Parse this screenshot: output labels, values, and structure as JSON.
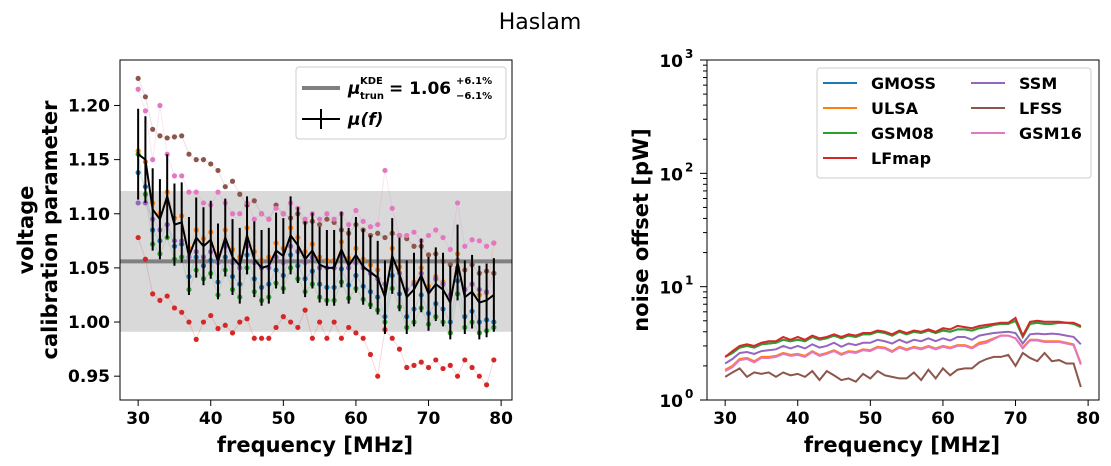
{
  "figure": {
    "suptitle": "Haslam"
  },
  "colors": {
    "GMOSS": "#1f77b4",
    "ULSA": "#ff7f0e",
    "GSM08": "#2ca02c",
    "LFmap": "#d62728",
    "SSM": "#9467bd",
    "LFSS": "#8c564b",
    "GSM16": "#e377c2",
    "mean_line": "#000000",
    "kde_line": "#808080",
    "band": "#d9d9d9"
  },
  "chart_data": [
    {
      "type": "scatter",
      "xlabel": "frequency [MHz]",
      "ylabel_lines": [
        "voltage",
        "calibration parameter"
      ],
      "xlim": [
        27.5,
        81.5
      ],
      "ylim": [
        0.928,
        1.242
      ],
      "xticks": [
        30,
        40,
        50,
        60,
        70,
        80
      ],
      "yticks": [
        0.95,
        1.0,
        1.05,
        1.1,
        1.15,
        1.2
      ],
      "ytick_labels": [
        "0.95",
        "1.00",
        "1.05",
        "1.10",
        "1.15",
        "1.20"
      ],
      "grid": false,
      "legend_position": "top-right",
      "legend": {
        "kde_label_main": "μ",
        "kde_label_sup": "KDE",
        "kde_label_sub": "trun",
        "kde_value": "= 1.06",
        "kde_plus": "+6.1%",
        "kde_minus": "−6.1%",
        "mean_label": "μ(f)"
      },
      "band": {
        "center": 1.056,
        "lower": 0.991,
        "upper": 1.121
      },
      "x": [
        30,
        31,
        32,
        33,
        34,
        35,
        36,
        37,
        38,
        39,
        40,
        41,
        42,
        43,
        44,
        45,
        46,
        47,
        48,
        49,
        50,
        51,
        52,
        53,
        54,
        55,
        56,
        57,
        58,
        59,
        60,
        61,
        62,
        63,
        64,
        65,
        66,
        67,
        68,
        69,
        70,
        71,
        72,
        73,
        74,
        75,
        76,
        77,
        78,
        79
      ],
      "mean": [
        1.155,
        1.15,
        1.104,
        1.095,
        1.116,
        1.09,
        1.092,
        1.061,
        1.078,
        1.07,
        1.076,
        1.056,
        1.078,
        1.06,
        1.052,
        1.08,
        1.058,
        1.05,
        1.052,
        1.066,
        1.061,
        1.08,
        1.071,
        1.058,
        1.066,
        1.053,
        1.05,
        1.05,
        1.067,
        1.052,
        1.062,
        1.051,
        1.046,
        1.041,
        1.023,
        1.061,
        1.044,
        1.023,
        1.03,
        1.043,
        1.026,
        1.035,
        1.03,
        1.018,
        1.055,
        1.023,
        1.028,
        1.018,
        1.02,
        1.025
      ],
      "mean_err": [
        0.042,
        0.04,
        0.038,
        0.037,
        0.039,
        0.038,
        0.037,
        0.036,
        0.037,
        0.036,
        0.036,
        0.035,
        0.036,
        0.035,
        0.035,
        0.036,
        0.035,
        0.035,
        0.035,
        0.035,
        0.035,
        0.036,
        0.035,
        0.035,
        0.035,
        0.035,
        0.035,
        0.035,
        0.035,
        0.035,
        0.035,
        0.035,
        0.034,
        0.034,
        0.034,
        0.035,
        0.034,
        0.034,
        0.034,
        0.034,
        0.034,
        0.034,
        0.034,
        0.034,
        0.035,
        0.034,
        0.034,
        0.034,
        0.034,
        0.034
      ],
      "series": [
        {
          "name": "GMOSS",
          "values": [
            1.138,
            1.125,
            1.085,
            1.075,
            1.09,
            1.07,
            1.072,
            1.042,
            1.06,
            1.052,
            1.057,
            1.037,
            1.06,
            1.042,
            1.035,
            1.062,
            1.04,
            1.032,
            1.035,
            1.048,
            1.043,
            1.062,
            1.052,
            1.04,
            1.047,
            1.035,
            1.032,
            1.032,
            1.049,
            1.034,
            1.043,
            1.033,
            1.028,
            1.023,
            1.005,
            1.043,
            1.026,
            1.005,
            1.012,
            1.025,
            1.008,
            1.017,
            1.012,
            1.0,
            1.038,
            1.005,
            1.01,
            1.0,
            1.002,
            1.0
          ]
        },
        {
          "name": "ULSA",
          "values": [
            1.158,
            1.148,
            1.11,
            1.1,
            1.12,
            1.096,
            1.098,
            1.068,
            1.085,
            1.077,
            1.083,
            1.063,
            1.085,
            1.067,
            1.06,
            1.087,
            1.065,
            1.057,
            1.06,
            1.073,
            1.068,
            1.087,
            1.078,
            1.065,
            1.072,
            1.06,
            1.057,
            1.057,
            1.074,
            1.059,
            1.068,
            1.058,
            1.053,
            1.048,
            1.03,
            1.068,
            1.051,
            1.03,
            1.037,
            1.05,
            1.033,
            1.042,
            1.037,
            1.025,
            1.063,
            1.03,
            1.035,
            1.025,
            1.027,
            1.073
          ]
        },
        {
          "name": "GSM08",
          "values": [
            1.155,
            1.118,
            1.072,
            1.063,
            1.078,
            1.058,
            1.06,
            1.03,
            1.048,
            1.04,
            1.045,
            1.025,
            1.048,
            1.03,
            1.023,
            1.05,
            1.028,
            1.02,
            1.023,
            1.036,
            1.031,
            1.05,
            1.04,
            1.028,
            1.035,
            1.023,
            1.02,
            1.02,
            1.037,
            1.022,
            1.031,
            1.021,
            1.016,
            1.011,
            1.0,
            1.031,
            1.014,
            0.995,
            1.0,
            1.013,
            0.998,
            1.005,
            1.0,
            0.99,
            1.026,
            0.995,
            1.0,
            0.99,
            0.992,
            0.995
          ]
        },
        {
          "name": "LFmap",
          "values": [
            1.078,
            1.058,
            1.026,
            1.02,
            1.024,
            1.013,
            1.009,
            1.0,
            0.984,
            1.0,
            1.006,
            0.994,
            0.997,
            0.99,
            1.0,
            1.003,
            0.985,
            0.985,
            0.985,
            0.995,
            1.005,
            1.0,
            0.995,
            1.011,
            0.985,
            1.0,
            0.985,
            1.0,
            0.985,
            0.995,
            0.99,
            0.985,
            0.97,
            0.95,
            0.993,
            0.985,
            0.975,
            0.958,
            0.96,
            0.963,
            0.958,
            0.965,
            0.957,
            0.96,
            0.95,
            0.965,
            0.958,
            0.95,
            0.942,
            0.965
          ]
        },
        {
          "name": "SSM",
          "values": [
            1.11,
            1.11,
            1.095,
            1.085,
            1.09,
            1.075,
            1.075,
            1.06,
            1.065,
            1.06,
            1.065,
            1.055,
            1.07,
            1.055,
            1.05,
            1.07,
            1.055,
            1.05,
            1.05,
            1.06,
            1.055,
            1.07,
            1.065,
            1.055,
            1.06,
            1.05,
            1.05,
            1.05,
            1.06,
            1.05,
            1.055,
            1.05,
            1.045,
            1.04,
            1.035,
            1.055,
            1.045,
            1.03,
            1.035,
            1.045,
            1.03,
            1.04,
            1.035,
            1.025,
            1.05,
            1.03,
            1.035,
            1.03,
            1.028,
            1.045
          ]
        },
        {
          "name": "LFSS",
          "values": [
            1.225,
            1.208,
            1.178,
            1.172,
            1.17,
            1.171,
            1.172,
            1.155,
            1.15,
            1.15,
            1.146,
            1.14,
            1.125,
            1.13,
            1.118,
            1.108,
            1.112,
            1.1,
            1.095,
            1.108,
            1.1,
            1.096,
            1.1,
            1.092,
            1.093,
            1.09,
            1.095,
            1.092,
            1.085,
            1.082,
            1.09,
            1.085,
            1.08,
            1.082,
            1.078,
            1.082,
            1.08,
            1.077,
            1.07,
            1.07,
            1.062,
            1.063,
            1.056,
            1.053,
            1.057,
            1.048,
            1.053,
            1.045,
            1.047,
            1.045
          ]
        },
        {
          "name": "GSM16",
          "values": [
            1.215,
            1.195,
            1.15,
            1.2,
            1.155,
            1.135,
            1.135,
            1.12,
            1.12,
            1.11,
            1.108,
            1.12,
            1.11,
            1.1,
            1.1,
            1.11,
            1.095,
            1.1,
            1.095,
            1.105,
            1.1,
            1.11,
            1.105,
            1.095,
            1.1,
            1.095,
            1.1,
            1.095,
            1.1,
            1.09,
            1.103,
            1.093,
            1.088,
            1.09,
            1.14,
            1.105,
            1.08,
            1.08,
            1.083,
            1.075,
            1.08,
            1.085,
            1.078,
            1.067,
            1.11,
            1.07,
            1.076,
            1.075,
            1.07,
            1.073
          ]
        }
      ]
    },
    {
      "type": "line",
      "xlabel": "frequency [MHz]",
      "ylabel": "noise offset [pW]",
      "xlim": [
        27.5,
        81.5
      ],
      "ylim": [
        1,
        1000
      ],
      "yscale": "log",
      "xticks": [
        30,
        40,
        50,
        60,
        70,
        80
      ],
      "ytick_base": "10",
      "ytick_exponents": [
        "0",
        "1",
        "2",
        "3"
      ],
      "grid": false,
      "legend_position": "top-right",
      "legend_columns": 2,
      "x": [
        30,
        31,
        32,
        33,
        34,
        35,
        36,
        37,
        38,
        39,
        40,
        41,
        42,
        43,
        44,
        45,
        46,
        47,
        48,
        49,
        50,
        51,
        52,
        53,
        54,
        55,
        56,
        57,
        58,
        59,
        60,
        61,
        62,
        63,
        64,
        65,
        66,
        67,
        68,
        69,
        70,
        71,
        72,
        73,
        74,
        75,
        76,
        77,
        78,
        79
      ],
      "series": [
        {
          "name": "GMOSS",
          "values": [
            2.4,
            2.6,
            2.9,
            3.0,
            2.9,
            3.1,
            3.15,
            3.2,
            3.4,
            3.3,
            3.4,
            3.3,
            3.6,
            3.4,
            3.5,
            3.7,
            3.5,
            3.7,
            3.6,
            3.8,
            3.8,
            4.0,
            3.9,
            3.7,
            4.0,
            3.8,
            4.0,
            3.9,
            4.1,
            3.9,
            4.1,
            4.0,
            4.2,
            4.2,
            4.1,
            4.3,
            4.4,
            4.6,
            4.7,
            4.7,
            5.0,
            3.6,
            4.7,
            4.8,
            4.7,
            4.7,
            4.8,
            4.8,
            4.7,
            4.4
          ]
        },
        {
          "name": "ULSA",
          "values": [
            1.85,
            2.0,
            2.3,
            2.35,
            2.2,
            2.4,
            2.4,
            2.45,
            2.6,
            2.5,
            2.55,
            2.45,
            2.7,
            2.5,
            2.6,
            2.75,
            2.55,
            2.7,
            2.65,
            2.8,
            2.75,
            2.95,
            2.9,
            2.7,
            2.95,
            2.8,
            2.95,
            2.85,
            3.0,
            2.85,
            3.0,
            2.9,
            3.05,
            3.05,
            2.9,
            3.2,
            3.3,
            3.5,
            3.7,
            3.7,
            3.5,
            2.9,
            3.4,
            3.4,
            3.3,
            3.3,
            3.3,
            3.2,
            3.1,
            2.1
          ]
        },
        {
          "name": "GSM08",
          "values": [
            2.4,
            2.6,
            2.9,
            3.0,
            2.9,
            3.1,
            3.15,
            3.2,
            3.4,
            3.3,
            3.4,
            3.3,
            3.6,
            3.4,
            3.5,
            3.7,
            3.5,
            3.7,
            3.6,
            3.8,
            3.8,
            4.0,
            3.9,
            3.7,
            4.0,
            3.8,
            4.0,
            3.9,
            4.1,
            3.9,
            4.1,
            4.0,
            4.2,
            4.2,
            4.1,
            4.3,
            4.4,
            4.6,
            4.7,
            4.7,
            5.0,
            3.6,
            4.7,
            4.8,
            4.7,
            4.7,
            4.8,
            4.8,
            4.7,
            4.4
          ]
        },
        {
          "name": "LFmap",
          "values": [
            2.4,
            2.7,
            3.0,
            3.1,
            3.0,
            3.2,
            3.3,
            3.3,
            3.6,
            3.4,
            3.6,
            3.4,
            3.7,
            3.5,
            3.6,
            3.8,
            3.6,
            3.8,
            3.7,
            3.9,
            3.9,
            4.1,
            4.0,
            3.8,
            4.1,
            3.9,
            4.1,
            4.0,
            4.2,
            4.0,
            4.3,
            4.2,
            4.5,
            4.4,
            4.3,
            4.5,
            4.6,
            4.7,
            4.8,
            4.8,
            5.3,
            3.7,
            4.9,
            5.0,
            4.9,
            4.9,
            4.9,
            4.8,
            4.8,
            4.5
          ]
        },
        {
          "name": "SSM",
          "values": [
            2.1,
            2.3,
            2.6,
            2.65,
            2.55,
            2.7,
            2.75,
            2.8,
            3.0,
            2.85,
            3.0,
            2.85,
            3.1,
            2.9,
            3.0,
            3.2,
            2.95,
            3.15,
            3.05,
            3.2,
            3.2,
            3.4,
            3.3,
            3.15,
            3.4,
            3.2,
            3.4,
            3.3,
            3.5,
            3.3,
            3.5,
            3.35,
            3.6,
            3.6,
            3.4,
            3.7,
            3.8,
            3.9,
            3.95,
            4.0,
            3.9,
            3.15,
            3.8,
            3.85,
            3.8,
            3.85,
            3.8,
            3.7,
            3.6,
            3.1
          ]
        },
        {
          "name": "LFSS",
          "values": [
            1.6,
            1.75,
            1.9,
            1.6,
            1.75,
            1.7,
            1.75,
            1.6,
            1.75,
            1.65,
            1.7,
            1.6,
            1.8,
            1.5,
            1.8,
            1.65,
            1.5,
            1.55,
            1.45,
            1.7,
            1.55,
            1.8,
            1.65,
            1.6,
            1.55,
            1.55,
            1.75,
            1.5,
            1.85,
            1.55,
            1.9,
            1.65,
            1.85,
            1.9,
            1.9,
            2.15,
            2.3,
            2.4,
            2.4,
            2.5,
            2.0,
            2.6,
            2.35,
            2.2,
            2.6,
            2.2,
            2.25,
            2.1,
            2.1,
            1.3
          ]
        },
        {
          "name": "GSM16",
          "values": [
            1.8,
            1.95,
            2.25,
            2.3,
            2.15,
            2.35,
            2.35,
            2.4,
            2.55,
            2.45,
            2.5,
            2.4,
            2.65,
            2.45,
            2.55,
            2.7,
            2.5,
            2.65,
            2.6,
            2.75,
            2.7,
            2.9,
            2.85,
            2.65,
            2.9,
            2.75,
            2.9,
            2.8,
            2.95,
            2.8,
            2.95,
            2.85,
            3.0,
            3.0,
            2.85,
            3.1,
            3.2,
            3.45,
            3.7,
            3.7,
            3.5,
            2.85,
            3.35,
            3.35,
            3.25,
            3.25,
            3.25,
            3.15,
            3.05,
            2.05
          ]
        }
      ]
    }
  ]
}
